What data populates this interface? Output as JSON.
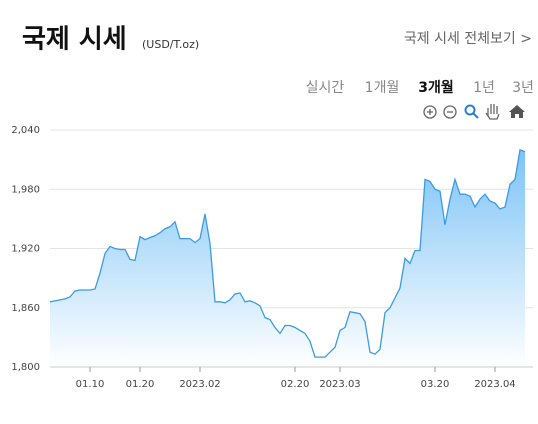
{
  "header": {
    "title": "국제 시세",
    "unit": "(USD/T.oz)",
    "link": "국제 시세 전체보기 >"
  },
  "tabs": [
    "실시간",
    "1개월",
    "3개월",
    "1년",
    "3년"
  ],
  "selected_tab": 2,
  "chart_data": {
    "type": "area",
    "color": "#3b9be3",
    "grid": true,
    "categories": [
      null,
      null,
      null,
      null,
      null,
      null,
      null,
      null,
      "01.10",
      null,
      null,
      null,
      null,
      null,
      null,
      null,
      null,
      null,
      "01.20",
      null,
      null,
      null,
      null,
      null,
      null,
      null,
      null,
      null,
      null,
      null,
      "2023.02",
      null,
      null,
      null,
      null,
      null,
      null,
      null,
      null,
      null,
      null,
      null,
      null,
      null,
      null,
      null,
      null,
      null,
      null,
      "02.20",
      null,
      null,
      null,
      null,
      null,
      null,
      null,
      null,
      "2023.03",
      null,
      null,
      null,
      null,
      null,
      null,
      null,
      null,
      null,
      null,
      null,
      null,
      null,
      null,
      null,
      null,
      null,
      null,
      "03.20",
      null,
      null,
      null,
      null,
      null,
      null,
      null,
      null,
      null,
      null,
      null,
      "2023.04",
      null,
      null,
      null,
      null,
      null,
      null
    ],
    "values": [
      1866,
      1867,
      1868,
      1869,
      1871,
      1877,
      1878,
      1878,
      1878,
      1879,
      1895,
      1915,
      1922,
      1920,
      1919,
      1919,
      1909,
      1908,
      1932,
      1929,
      1931,
      1933,
      1936,
      1940,
      1942,
      1947,
      1930,
      1930,
      1930,
      1926,
      1930,
      1955,
      1925,
      1866,
      1866,
      1865,
      1868,
      1874,
      1875,
      1866,
      1867,
      1865,
      1862,
      1850,
      1848,
      1840,
      1834,
      1842,
      1842,
      1840,
      1837,
      1834,
      1826,
      1810,
      1810,
      1810,
      1815,
      1820,
      1837,
      1840,
      1856,
      1855,
      1854,
      1846,
      1815,
      1813,
      1818,
      1855,
      1860,
      1870,
      1880,
      1910,
      1905,
      1918,
      1918,
      1990,
      1988,
      1980,
      1978,
      1944,
      1970,
      1990,
      1975,
      1975,
      1973,
      1962,
      1970,
      1975,
      1968,
      1966,
      1960,
      1962,
      1985,
      1990,
      2020,
      2018
    ],
    "ylim": [
      1800,
      2040
    ],
    "yticks": [
      {
        "value": 1800,
        "label": "1,800"
      },
      {
        "value": 1860,
        "label": "1,860"
      },
      {
        "value": 1920,
        "label": "1,920"
      },
      {
        "value": 1980,
        "label": "1,980"
      },
      {
        "value": 2040,
        "label": "2,040"
      }
    ]
  }
}
